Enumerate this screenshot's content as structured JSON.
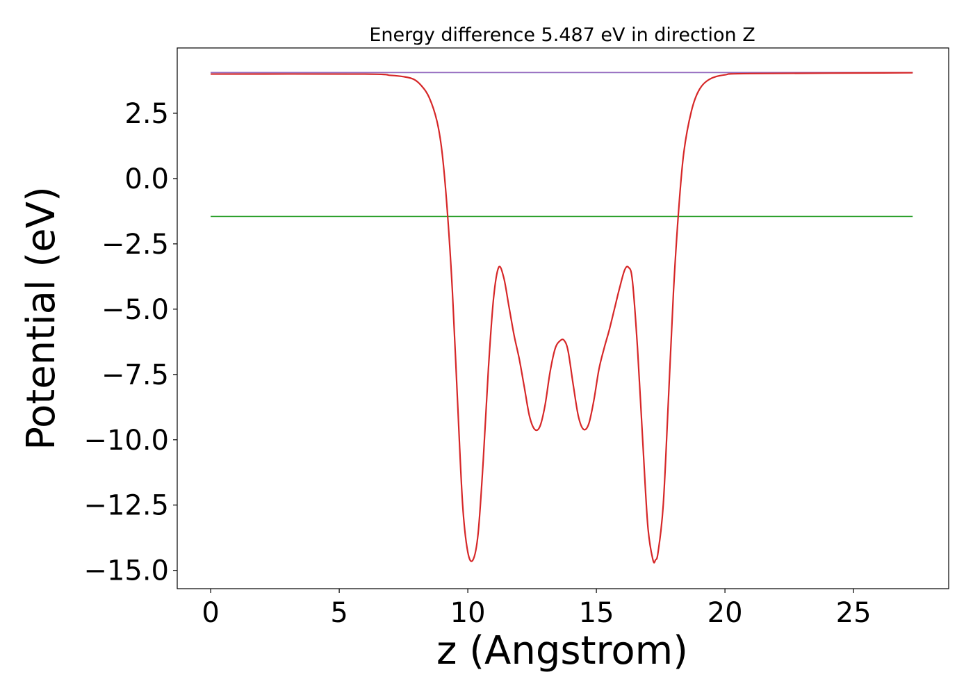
{
  "chart_data": {
    "type": "line",
    "title": "Energy difference 5.487 eV in direction Z",
    "xlabel": "z (Angstrom)",
    "ylabel": "Potential (eV)",
    "xlim": [
      -1.3,
      28.7
    ],
    "ylim": [
      -15.7,
      5.0
    ],
    "xticks": [
      {
        "value": 0,
        "label": "0"
      },
      {
        "value": 5,
        "label": "5"
      },
      {
        "value": 10,
        "label": "10"
      },
      {
        "value": 15,
        "label": "15"
      },
      {
        "value": 20,
        "label": "20"
      },
      {
        "value": 25,
        "label": "25"
      }
    ],
    "yticks": [
      {
        "value": 2.5,
        "label": "2.5"
      },
      {
        "value": 0,
        "label": "0.0"
      },
      {
        "value": -2.5,
        "label": "−2.5"
      },
      {
        "value": -5,
        "label": "−5.0"
      },
      {
        "value": -7.5,
        "label": "−7.5"
      },
      {
        "value": -10,
        "label": "−10.0"
      },
      {
        "value": -12.5,
        "label": "−12.5"
      },
      {
        "value": -15,
        "label": "−15.0"
      }
    ],
    "grid": false,
    "series": [
      {
        "color": "#1f77b4",
        "x": [
          0,
          27.3
        ],
        "y": [
          4.06,
          4.06
        ]
      },
      {
        "color": "#2ca02c",
        "x": [
          0,
          27.3
        ],
        "y": [
          -1.45,
          -1.45
        ]
      },
      {
        "color": "#9467bd",
        "x": [
          0,
          27.3
        ],
        "y": [
          4.06,
          4.06
        ]
      },
      {
        "color": "#d62728",
        "x": [
          0,
          6,
          7,
          7.5,
          7.9,
          8.2,
          8.5,
          8.8,
          9.0,
          9.2,
          9.4,
          9.6,
          9.8,
          10.0,
          10.2,
          10.4,
          10.6,
          10.8,
          11.0,
          11.2,
          11.4,
          11.6,
          11.8,
          12.0,
          12.2,
          12.4,
          12.6,
          12.8,
          13.0,
          13.2,
          13.4,
          13.6,
          13.75,
          13.9,
          14.1,
          14.3,
          14.5,
          14.7,
          14.9,
          15.1,
          15.3,
          15.5,
          15.7,
          15.9,
          16.1,
          16.25,
          16.4,
          16.6,
          16.8,
          17.0,
          17.2,
          17.3,
          17.4,
          17.6,
          17.8,
          18.0,
          18.2,
          18.4,
          18.7,
          19.0,
          19.4,
          20.0,
          21.0,
          27.3
        ],
        "y": [
          4.0,
          4.0,
          3.95,
          3.9,
          3.8,
          3.55,
          3.1,
          2.2,
          1.0,
          -1.2,
          -4.3,
          -8.5,
          -12.5,
          -14.3,
          -14.6,
          -13.6,
          -10.8,
          -7.3,
          -4.6,
          -3.4,
          -3.8,
          -4.9,
          -6.0,
          -6.9,
          -8.0,
          -9.1,
          -9.6,
          -9.5,
          -8.7,
          -7.4,
          -6.5,
          -6.2,
          -6.2,
          -6.6,
          -7.9,
          -9.1,
          -9.6,
          -9.4,
          -8.5,
          -7.3,
          -6.5,
          -5.8,
          -5.0,
          -4.2,
          -3.5,
          -3.4,
          -3.9,
          -6.5,
          -10.0,
          -13.3,
          -14.6,
          -14.6,
          -14.3,
          -12.5,
          -8.5,
          -4.3,
          -1.2,
          1.0,
          2.6,
          3.4,
          3.8,
          3.97,
          4.02,
          4.05
        ]
      }
    ]
  }
}
